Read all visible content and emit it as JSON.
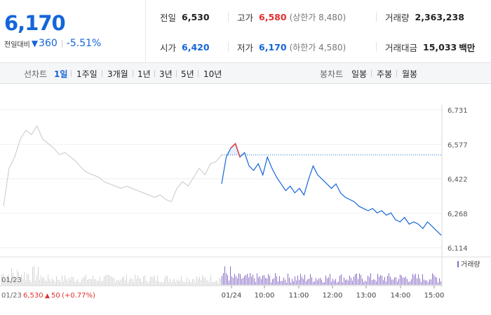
{
  "quote": {
    "price": "6,170",
    "change_label": "전일대비",
    "change_abs": "360",
    "change_pct": "-5.51%"
  },
  "stats": {
    "prev_close": {
      "label": "전일",
      "value": "6,530"
    },
    "open": {
      "label": "시가",
      "value": "6,420"
    },
    "high": {
      "label": "고가",
      "value": "6,580",
      "sub": "(상한가 8,480)"
    },
    "low": {
      "label": "저가",
      "value": "6,170",
      "sub": "(하한가 4,580)"
    },
    "volume": {
      "label": "거래량",
      "value": "2,363,238"
    },
    "amount": {
      "label": "거래대금",
      "value": "15,033",
      "unit": "백만"
    }
  },
  "line_tabs": {
    "label": "선차트",
    "items": [
      "1일",
      "1주일",
      "3개월",
      "1년",
      "3년",
      "5년",
      "10년"
    ],
    "selected": 0
  },
  "candle_tabs": {
    "label": "봉차트",
    "items": [
      "일봉",
      "주봉",
      "월봉"
    ]
  },
  "chart_data": {
    "type": "line",
    "y_ticks": [
      "6,731",
      "6,577",
      "6,422",
      "6,268",
      "6,114"
    ],
    "ylim": [
      6114,
      6731
    ],
    "x_ticks": [
      "01/24",
      "10:00",
      "11:00",
      "12:00",
      "13:00",
      "14:00",
      "15:00"
    ],
    "prev_day_tick": "01/23",
    "prev_close": 6530,
    "volume_legend": "거래량",
    "footer": {
      "date": "01/23",
      "price": "6,530",
      "change": "50",
      "pct": "(+0.77%)"
    },
    "prev_day_series": [
      6300,
      6470,
      6520,
      6600,
      6640,
      6620,
      6660,
      6600,
      6580,
      6560,
      6530,
      6540,
      6520,
      6500,
      6470,
      6450,
      6440,
      6430,
      6410,
      6400,
      6390,
      6380,
      6390,
      6380,
      6370,
      6360,
      6350,
      6340,
      6350,
      6330,
      6320,
      6380,
      6410,
      6390,
      6430,
      6470,
      6440,
      6490,
      6500,
      6530
    ],
    "today_series": [
      6400,
      6520,
      6560,
      6580,
      6520,
      6540,
      6480,
      6460,
      6490,
      6440,
      6520,
      6470,
      6430,
      6400,
      6370,
      6390,
      6360,
      6380,
      6350,
      6420,
      6480,
      6440,
      6420,
      6400,
      6380,
      6400,
      6360,
      6340,
      6330,
      6320,
      6300,
      6290,
      6280,
      6290,
      6270,
      6280,
      6260,
      6270,
      6240,
      6230,
      6250,
      6220,
      6230,
      6220,
      6200,
      6230,
      6210,
      6190,
      6170
    ],
    "high_point": 6580
  }
}
